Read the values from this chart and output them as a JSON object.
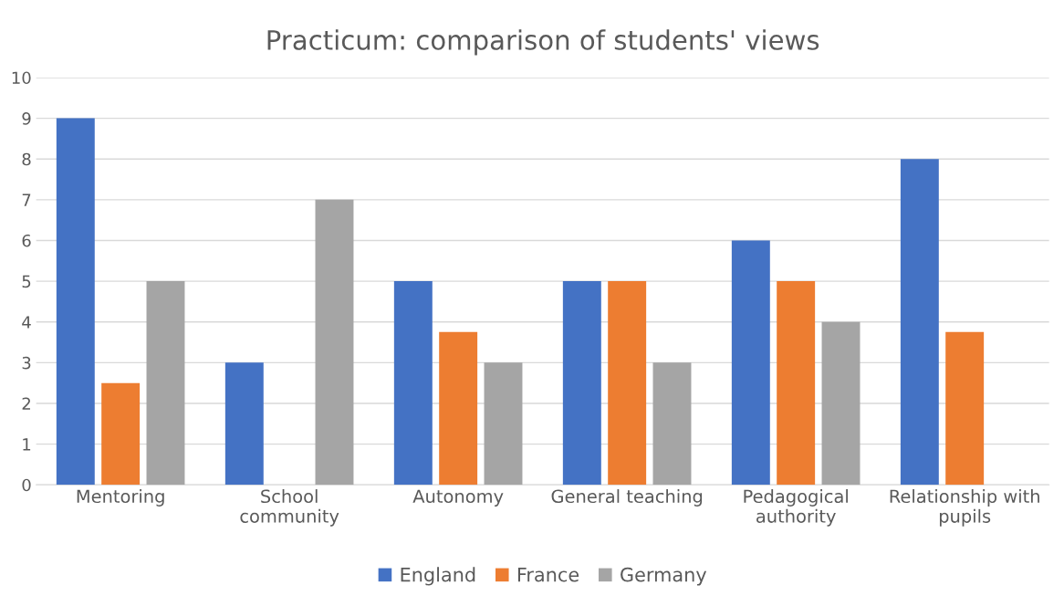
{
  "chart_data": {
    "type": "bar",
    "title": "Practicum: comparison of students' views",
    "categories": [
      "Mentoring",
      "School\ncommunity",
      "Autonomy",
      "General teaching",
      "Pedagogical\nauthority",
      "Relationship with\npupils"
    ],
    "series": [
      {
        "name": "England",
        "color": "#4472c4",
        "values": [
          9,
          3,
          5,
          5,
          6,
          8
        ]
      },
      {
        "name": "France",
        "color": "#ed7d31",
        "values": [
          2.5,
          0,
          3.75,
          5,
          5,
          3.75
        ]
      },
      {
        "name": "Germany",
        "color": "#a5a5a5",
        "values": [
          5,
          7,
          3,
          3,
          4,
          0
        ]
      }
    ],
    "ylim": [
      0,
      10
    ],
    "yticks": [
      0,
      1,
      2,
      3,
      4,
      5,
      6,
      7,
      8,
      9,
      10
    ],
    "grid": "y",
    "legend": "bottom"
  }
}
